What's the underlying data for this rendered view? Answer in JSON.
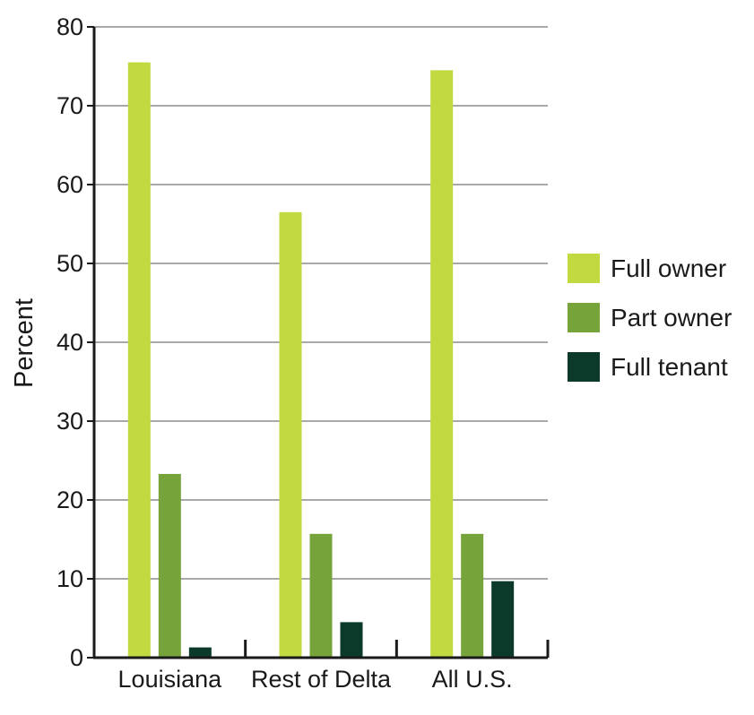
{
  "chart_data": {
    "type": "bar",
    "title": "",
    "xlabel": "",
    "ylabel": "Percent",
    "ylim": [
      0,
      80
    ],
    "yticks": [
      0,
      10,
      20,
      30,
      40,
      50,
      60,
      70,
      80
    ],
    "grid": true,
    "legend_position": "right",
    "categories": [
      "Louisiana",
      "Rest of Delta",
      "All U.S."
    ],
    "series": [
      {
        "name": "Full owner",
        "color": "#c3d940",
        "values": [
          75.5,
          56.5,
          74.5
        ]
      },
      {
        "name": "Part owner",
        "color": "#76a43a",
        "values": [
          23.3,
          15.7,
          15.7
        ]
      },
      {
        "name": "Full tenant",
        "color": "#0c3a2a",
        "values": [
          1.3,
          4.5,
          9.7
        ]
      }
    ]
  }
}
